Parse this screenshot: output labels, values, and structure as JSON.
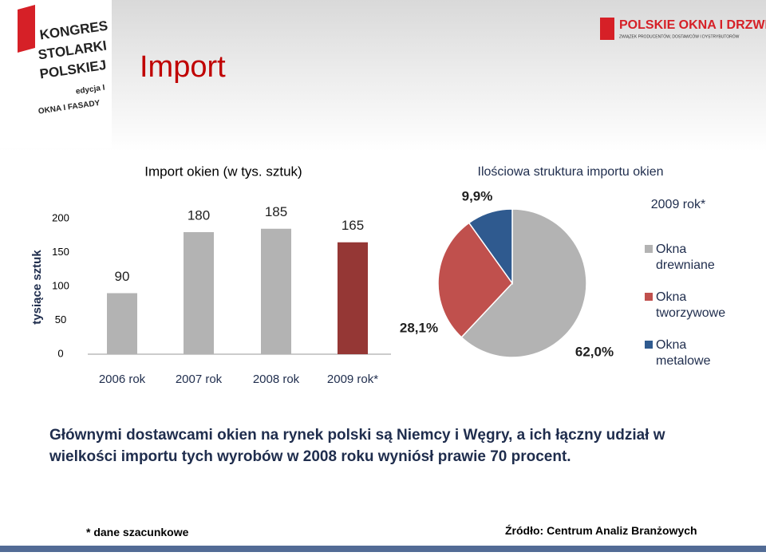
{
  "header": {
    "title": "Import",
    "logo_left": [
      "KONGRES",
      "STOLARKI",
      "POLSKIEJ",
      "edycja I",
      "OKNA I FASADY"
    ],
    "logo_right": "POLSKIE OKNA I DRZWI",
    "logo_right_sub": "ZWIĄZEK PRODUCENTÓW, DOSTAWCÓW I DYSTRYBUTORÓW"
  },
  "chart_data": [
    {
      "type": "bar",
      "title": "Import okien (w tys. sztuk)",
      "y_label": "tysiące sztuk",
      "categories": [
        "2006 rok",
        "2007 rok",
        "2008 rok",
        "2009 rok*"
      ],
      "values": [
        90,
        180,
        185,
        165
      ],
      "colors": [
        "#b3b3b3",
        "#b3b3b3",
        "#b3b3b3",
        "#953735"
      ],
      "ylim": [
        0,
        200
      ],
      "yticks": [
        0,
        50,
        100,
        150,
        200
      ],
      "grid": false
    },
    {
      "type": "pie",
      "title": "Ilościowa struktura importu okien",
      "subtitle": "2009 rok*",
      "categories": [
        "Okna drewniane",
        "Okna tworzywowe",
        "Okna metalowe"
      ],
      "values": [
        62.0,
        28.1,
        9.9
      ],
      "value_labels": [
        "62,0%",
        "28,1%",
        "9,9%"
      ],
      "colors": [
        "#b3b3b3",
        "#c0504d",
        "#2f5a8f"
      ]
    }
  ],
  "body": "Głównymi dostawcami okien na rynek polski są Niemcy i Węgry, a ich łączny udział w wielkości importu tych wyrobów w 2008 roku wyniósł prawie 70 procent.",
  "footnote": "* dane szacunkowe",
  "source": "Źródło: Centrum Analiz Branżowych"
}
